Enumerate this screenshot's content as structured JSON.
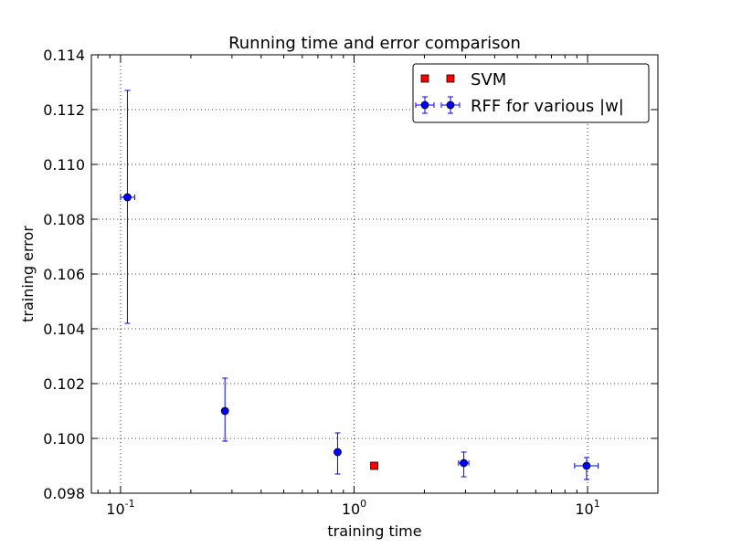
{
  "chart_data": {
    "type": "scatter",
    "title": "Running time and error comparison",
    "xlabel": "training time",
    "ylabel": "training error",
    "xscale": "log",
    "xlim": [
      0.075,
      20
    ],
    "ylim": [
      0.098,
      0.114
    ],
    "grid": true,
    "legend_position": "top-right",
    "y_ticks": [
      "0.098",
      "0.100",
      "0.102",
      "0.104",
      "0.106",
      "0.108",
      "0.110",
      "0.112",
      "0.114"
    ],
    "x_ticks": [
      {
        "base": "10",
        "exp": "-1",
        "value": 0.1
      },
      {
        "base": "10",
        "exp": "0",
        "value": 1
      },
      {
        "base": "10",
        "exp": "1",
        "value": 10
      }
    ],
    "series": [
      {
        "name": "SVM",
        "marker": "square",
        "color": "#ff0000",
        "points": [
          {
            "x": 1.22,
            "y": 0.099
          }
        ]
      },
      {
        "name": "RFF for various |w|",
        "marker": "circle",
        "color": "#0000ff",
        "points": [
          {
            "x": 0.107,
            "y": 0.1088,
            "y_err_low": 0.1042,
            "y_err_high": 0.1127,
            "x_err_low": 0.1,
            "x_err_high": 0.115
          },
          {
            "x": 0.28,
            "y": 0.101,
            "y_err_low": 0.0999,
            "y_err_high": 0.1022,
            "x_err_low": 0.273,
            "x_err_high": 0.287
          },
          {
            "x": 0.85,
            "y": 0.0995,
            "y_err_low": 0.0987,
            "y_err_high": 0.1002,
            "x_err_low": 0.83,
            "x_err_high": 0.87
          },
          {
            "x": 2.95,
            "y": 0.0991,
            "y_err_low": 0.0986,
            "y_err_high": 0.0995,
            "x_err_low": 2.8,
            "x_err_high": 3.1
          },
          {
            "x": 9.9,
            "y": 0.099,
            "y_err_low": 0.0985,
            "y_err_high": 0.0993,
            "x_err_low": 8.8,
            "x_err_high": 11.1
          }
        ]
      }
    ]
  }
}
